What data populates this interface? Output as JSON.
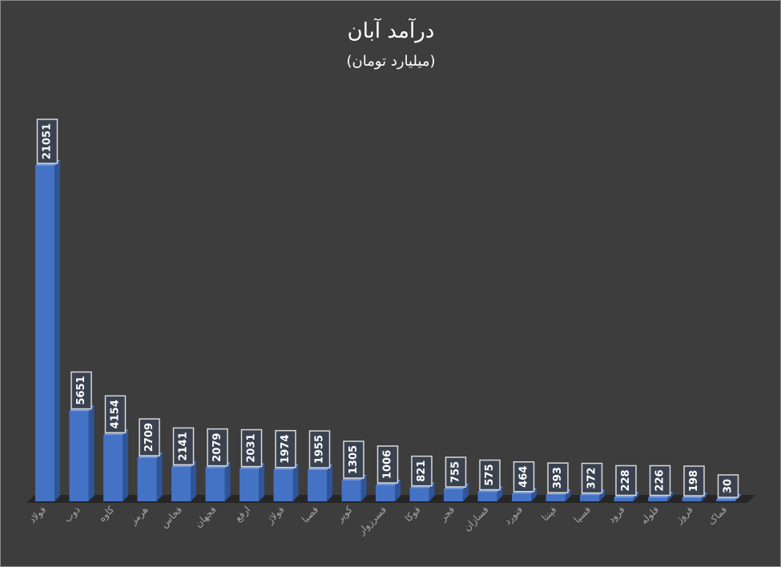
{
  "chart_data": {
    "type": "bar",
    "title": "درآمد آبان",
    "subtitle": "(میلیارد تومان)",
    "xlabel": "",
    "ylabel": "",
    "categories": [
      "فولاد",
      "ذوب",
      "کاوه",
      "هرمز",
      "فخاس",
      "فجهان",
      "ارفع",
      "فولاژ",
      "فصبا",
      "کویر",
      "فسرزوار",
      "فوکا",
      "فجر",
      "فسازان",
      "فنورد",
      "فپنتا",
      "فسپا",
      "فرود",
      "فلوله",
      "فروژ",
      "فماک"
    ],
    "values": [
      21051,
      5651,
      4154,
      2709,
      2141,
      2079,
      2031,
      1974,
      1955,
      1305,
      1006,
      821,
      755,
      575,
      464,
      393,
      372,
      228,
      226,
      198,
      30
    ],
    "grid": false,
    "legend": "none",
    "style": "3d-column",
    "colors": {
      "bar_front": "#4472c4",
      "bar_side": "#2f5597",
      "bar_top": "#6f95d8",
      "floor": "#262626",
      "background": "#3d3d3d"
    }
  }
}
